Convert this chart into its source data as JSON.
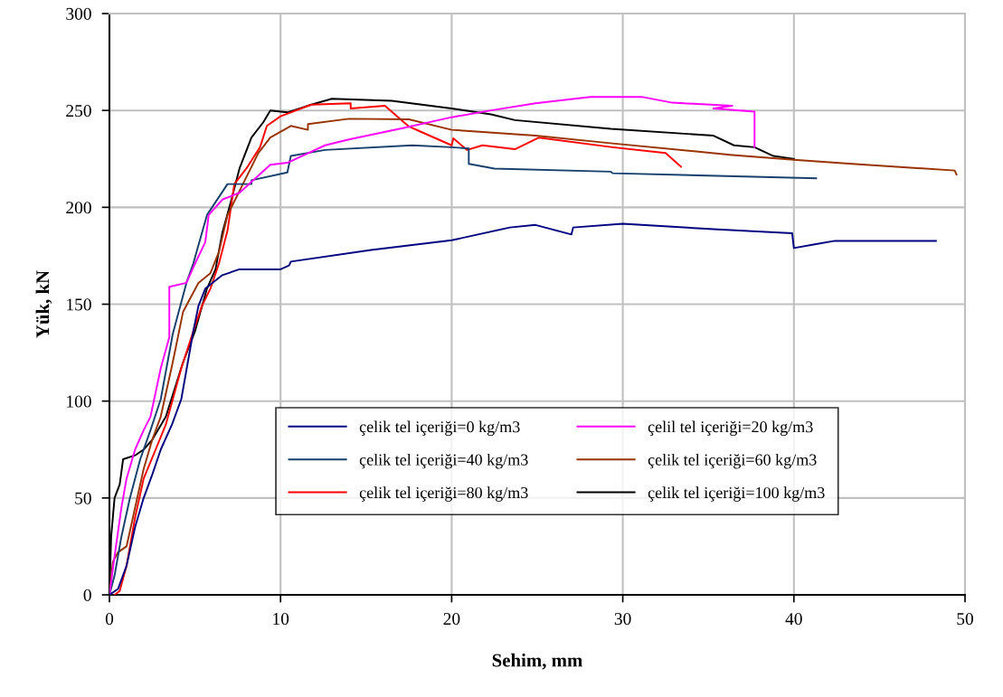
{
  "chart_data": {
    "type": "line",
    "xlabel": "Sehim, mm",
    "ylabel": "Yük, kN",
    "xlim": [
      0,
      50
    ],
    "xticks": [
      0,
      10,
      20,
      30,
      40,
      50
    ],
    "ylim": [
      0,
      300
    ],
    "yticks": [
      0,
      50,
      100,
      150,
      200,
      250,
      300
    ],
    "grid": true,
    "legend": "bottom",
    "marker": "none",
    "line_style": "solid",
    "series": [
      {
        "name": "çelik tel içeriği=0 kg/m3",
        "color": "#000080",
        "x": [
          0,
          0.5,
          1,
          1.5,
          2,
          2.5,
          3,
          3.66,
          4.2,
          4.9,
          5.2,
          5.6,
          6.6,
          7.6,
          10,
          10.5,
          10.6,
          15.3,
          20,
          23.4,
          24.9,
          25.7,
          27,
          27.1,
          30,
          35.3,
          39.9,
          40,
          41.3,
          42.4,
          48.3
        ],
        "values": [
          0,
          3,
          15,
          35,
          50,
          62,
          75,
          88,
          101,
          136,
          149,
          158,
          165,
          168,
          168,
          170,
          172,
          178,
          183,
          189.6,
          190.9,
          189,
          186,
          189.6,
          191.5,
          188.7,
          186.6,
          179,
          181,
          182.7,
          182.7
        ]
      },
      {
        "name": "çelil tel içeriği=20 kg/m3",
        "color": "#ff00ff",
        "x": [
          0,
          0.3,
          0.7,
          1,
          1.5,
          2,
          2.4,
          3,
          3.5,
          3.5,
          4.5,
          4.9,
          5.6,
          5.8,
          6.6,
          7.6,
          9.4,
          10.4,
          12.6,
          14,
          17.2,
          20,
          22.3,
          24.9,
          28.1,
          31.1,
          32.9,
          36.4,
          35.3,
          37.7,
          37.7
        ],
        "values": [
          0,
          20,
          45,
          60,
          75,
          85,
          92,
          117,
          133,
          159,
          161,
          169,
          182,
          196,
          204,
          207.5,
          222,
          223,
          232,
          235,
          241,
          246.5,
          250,
          253.7,
          257,
          257,
          254,
          252.4,
          251,
          249.4,
          231
        ]
      },
      {
        "name": "çelik tel içeriği=40 kg/m3",
        "color": "#17406d",
        "x": [
          0,
          0.3,
          0.7,
          1.2,
          1.8,
          2.4,
          3,
          3.7,
          4.5,
          4.9,
          5.7,
          6.9,
          8.3,
          8.3,
          10.4,
          10.6,
          12.6,
          17.7,
          20,
          21,
          21,
          22.5,
          29.3,
          29.4,
          41.3
        ],
        "values": [
          0,
          10,
          30,
          50,
          70,
          85,
          101,
          134.6,
          161,
          171,
          196,
          212,
          212,
          214,
          218,
          226.5,
          229.6,
          232,
          231,
          230.4,
          222.4,
          220,
          218.4,
          217.6,
          215
        ]
      },
      {
        "name": "çelik tel içeriği=60 kg/m3",
        "color": "#993300",
        "x": [
          0,
          0.2,
          0.5,
          1,
          1.5,
          2,
          2.5,
          3,
          3.7,
          4.3,
          5.2,
          5.9,
          6.4,
          6.9,
          7.8,
          8.7,
          9.4,
          10.6,
          11.6,
          11.6,
          14,
          17.5,
          20,
          24.9,
          29.4,
          36.4,
          40,
          43.4,
          49.4,
          49.5
        ],
        "values": [
          0,
          17,
          22,
          25,
          45,
          65,
          80,
          92,
          120,
          146,
          161,
          166,
          177,
          196,
          212,
          228,
          236,
          242,
          240,
          243,
          245.7,
          245.4,
          240,
          237,
          233,
          227,
          224.5,
          222.4,
          219,
          217
        ]
      },
      {
        "name": "çelik tel içeriği=80 kg/m3",
        "color": "#ff0000",
        "x": [
          0.3,
          0.6,
          1,
          1.5,
          2,
          2.7,
          3.3,
          4.2,
          4.9,
          5.4,
          5.9,
          6.4,
          6.9,
          7.3,
          8,
          8.8,
          9.2,
          10,
          11.8,
          14.1,
          14.1,
          16.1,
          17.5,
          18.2,
          20,
          20.1,
          20.9,
          21.8,
          23.7,
          25.1,
          29.4,
          32.5,
          33.4
        ],
        "values": [
          0,
          2,
          15,
          40,
          60,
          75,
          88,
          117,
          136,
          149,
          158,
          171,
          188,
          212,
          220,
          231,
          242,
          247,
          253,
          253.7,
          251,
          252.4,
          241.7,
          239,
          232,
          235.6,
          229.6,
          232,
          230,
          236,
          231,
          228,
          221
        ]
      },
      {
        "name": "çelik tel içeriği=100 kg/m3",
        "color": "#000000",
        "x": [
          0,
          0.1,
          0.3,
          0.6,
          0.8,
          1.5,
          2,
          2.5,
          3.3,
          4.3,
          5,
          5.7,
          6.2,
          6.6,
          7.1,
          7.6,
          8.3,
          9,
          9.4,
          10.4,
          11.8,
          13,
          16.5,
          20,
          22.3,
          23.7,
          29.3,
          35.3,
          36.5,
          37.7,
          38.8,
          40
        ],
        "values": [
          0,
          30,
          50,
          57,
          70,
          72,
          75,
          80,
          92,
          120,
          136,
          158,
          168,
          187,
          203,
          220,
          236,
          244,
          250,
          249,
          253,
          256,
          255,
          251,
          248,
          245,
          240.5,
          237,
          232,
          231,
          226.5,
          225
        ]
      }
    ]
  }
}
